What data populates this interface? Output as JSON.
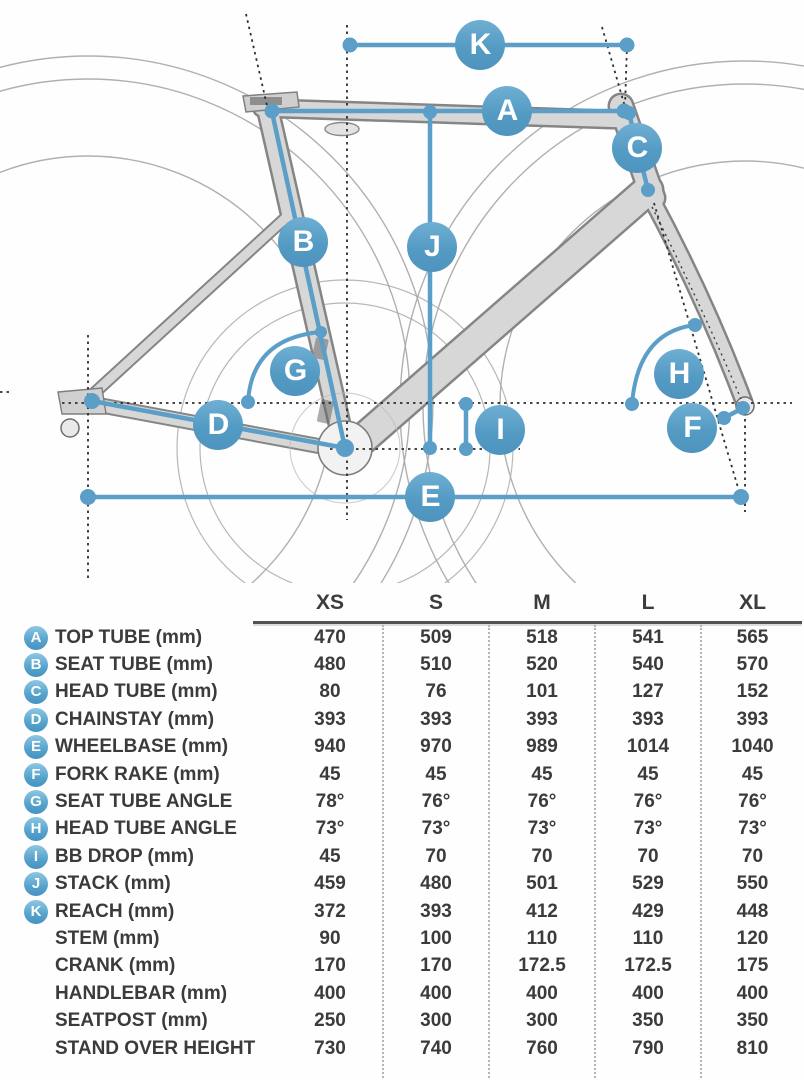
{
  "diagram": {
    "accent": "#5b9ec7",
    "badges": [
      "K",
      "A",
      "C",
      "B",
      "J",
      "G",
      "H",
      "D",
      "I",
      "F",
      "E"
    ]
  },
  "table": {
    "columns": [
      "XS",
      "S",
      "M",
      "L",
      "XL"
    ],
    "rows": [
      {
        "letter": "A",
        "label": "TOP TUBE (mm)",
        "values": [
          "470",
          "509",
          "518",
          "541",
          "565"
        ]
      },
      {
        "letter": "B",
        "label": "SEAT TUBE (mm)",
        "values": [
          "480",
          "510",
          "520",
          "540",
          "570"
        ]
      },
      {
        "letter": "C",
        "label": "HEAD TUBE (mm)",
        "values": [
          "80",
          "76",
          "101",
          "127",
          "152"
        ]
      },
      {
        "letter": "D",
        "label": "CHAINSTAY (mm)",
        "values": [
          "393",
          "393",
          "393",
          "393",
          "393"
        ]
      },
      {
        "letter": "E",
        "label": "WHEELBASE (mm)",
        "values": [
          "940",
          "970",
          "989",
          "1014",
          "1040"
        ]
      },
      {
        "letter": "F",
        "label": "FORK RAKE (mm)",
        "values": [
          "45",
          "45",
          "45",
          "45",
          "45"
        ]
      },
      {
        "letter": "G",
        "label": "SEAT TUBE ANGLE",
        "values": [
          "78°",
          "76°",
          "76°",
          "76°",
          "76°"
        ]
      },
      {
        "letter": "H",
        "label": "HEAD TUBE ANGLE",
        "values": [
          "73°",
          "73°",
          "73°",
          "73°",
          "73°"
        ]
      },
      {
        "letter": "I",
        "label": "BB DROP (mm)",
        "values": [
          "45",
          "70",
          "70",
          "70",
          "70"
        ]
      },
      {
        "letter": "J",
        "label": "STACK (mm)",
        "values": [
          "459",
          "480",
          "501",
          "529",
          "550"
        ]
      },
      {
        "letter": "K",
        "label": "REACH (mm)",
        "values": [
          "372",
          "393",
          "412",
          "429",
          "448"
        ]
      },
      {
        "letter": "",
        "label": "STEM (mm)",
        "values": [
          "90",
          "100",
          "110",
          "110",
          "120"
        ]
      },
      {
        "letter": "",
        "label": "CRANK (mm)",
        "values": [
          "170",
          "170",
          "172.5",
          "172.5",
          "175"
        ]
      },
      {
        "letter": "",
        "label": "HANDLEBAR (mm)",
        "values": [
          "400",
          "400",
          "400",
          "400",
          "400"
        ]
      },
      {
        "letter": "",
        "label": "SEATPOST (mm)",
        "values": [
          "250",
          "300",
          "300",
          "350",
          "350"
        ]
      },
      {
        "letter": "",
        "label": "STAND OVER HEIGHT",
        "values": [
          "730",
          "740",
          "760",
          "790",
          "810"
        ]
      }
    ]
  }
}
